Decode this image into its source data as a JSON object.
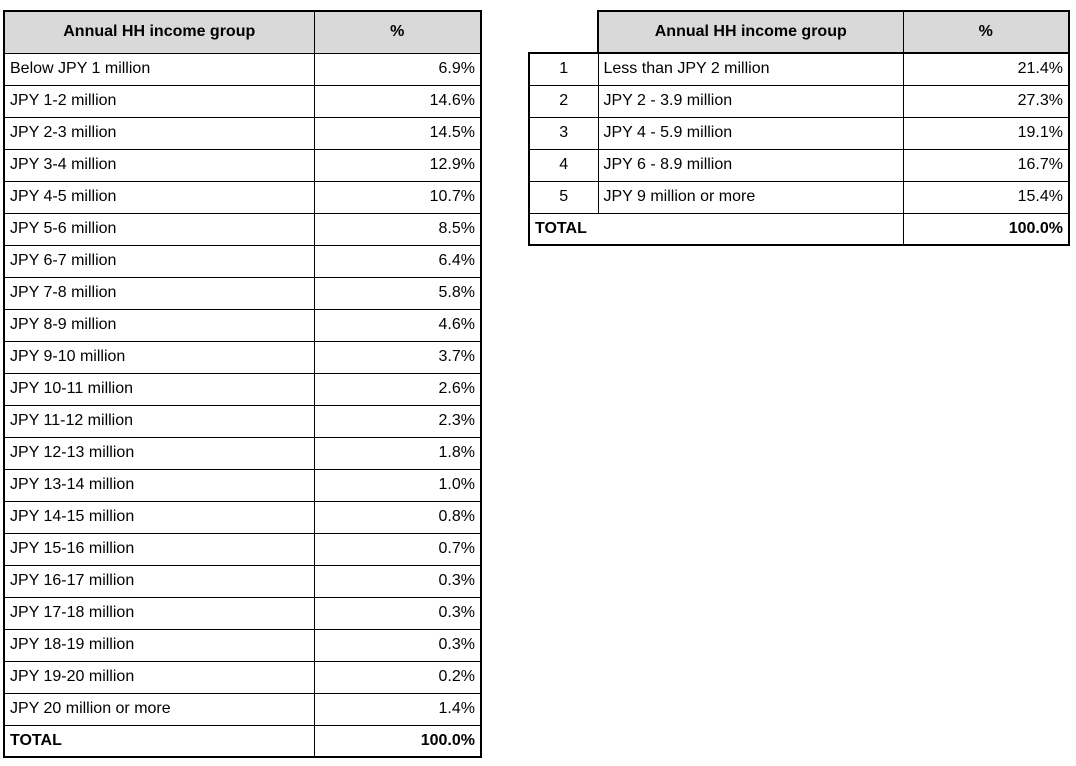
{
  "left_table": {
    "header": {
      "group": "Annual HH income group",
      "pct": "%"
    },
    "rows": [
      {
        "group": "Below JPY 1 million",
        "pct": "6.9%"
      },
      {
        "group": "JPY 1-2 million",
        "pct": "14.6%"
      },
      {
        "group": "JPY 2-3 million",
        "pct": "14.5%"
      },
      {
        "group": "JPY 3-4 million",
        "pct": "12.9%"
      },
      {
        "group": "JPY 4-5 million",
        "pct": "10.7%"
      },
      {
        "group": "JPY 5-6 million",
        "pct": "8.5%"
      },
      {
        "group": "JPY 6-7 million",
        "pct": "6.4%"
      },
      {
        "group": "JPY 7-8 million",
        "pct": "5.8%"
      },
      {
        "group": "JPY 8-9 million",
        "pct": "4.6%"
      },
      {
        "group": "JPY 9-10 million",
        "pct": "3.7%"
      },
      {
        "group": "JPY 10-11 million",
        "pct": "2.6%"
      },
      {
        "group": "JPY 11-12 million",
        "pct": "2.3%"
      },
      {
        "group": "JPY 12-13 million",
        "pct": "1.8%"
      },
      {
        "group": "JPY 13-14 million",
        "pct": "1.0%"
      },
      {
        "group": "JPY 14-15 million",
        "pct": "0.8%"
      },
      {
        "group": "JPY 15-16 million",
        "pct": "0.7%"
      },
      {
        "group": "JPY 16-17 million",
        "pct": "0.3%"
      },
      {
        "group": "JPY 17-18 million",
        "pct": "0.3%"
      },
      {
        "group": "JPY 18-19 million",
        "pct": "0.3%"
      },
      {
        "group": "JPY 19-20 million",
        "pct": "0.2%"
      },
      {
        "group": "JPY 20 million or more",
        "pct": "1.4%"
      }
    ],
    "total": {
      "label": "TOTAL",
      "pct": "100.0%"
    }
  },
  "right_table": {
    "header": {
      "group": "Annual HH income group",
      "pct": "%"
    },
    "rows": [
      {
        "num": "1",
        "group": "Less than JPY 2 million",
        "pct": "21.4%"
      },
      {
        "num": "2",
        "group": "JPY 2 - 3.9 million",
        "pct": "27.3%"
      },
      {
        "num": "3",
        "group": "JPY 4 - 5.9 million",
        "pct": "19.1%"
      },
      {
        "num": "4",
        "group": "JPY 6 - 8.9 million",
        "pct": "16.7%"
      },
      {
        "num": "5",
        "group": "JPY 9 million or more",
        "pct": "15.4%"
      }
    ],
    "total": {
      "label": "TOTAL",
      "pct": "100.0%"
    }
  },
  "colors": {
    "header_bg": "#d9d9d9",
    "border": "#000000",
    "text": "#000000",
    "page_bg": "#ffffff"
  },
  "chart_data": [
    {
      "type": "table",
      "columns": [
        "Annual HH income group",
        "%"
      ],
      "categories": [
        "Below JPY 1 million",
        "JPY 1-2 million",
        "JPY 2-3 million",
        "JPY 3-4 million",
        "JPY 4-5 million",
        "JPY 5-6 million",
        "JPY 6-7 million",
        "JPY 7-8 million",
        "JPY 8-9 million",
        "JPY 9-10 million",
        "JPY 10-11 million",
        "JPY 11-12 million",
        "JPY 12-13 million",
        "JPY 13-14 million",
        "JPY 14-15 million",
        "JPY 15-16 million",
        "JPY 16-17 million",
        "JPY 17-18 million",
        "JPY 18-19 million",
        "JPY 19-20 million",
        "JPY 20 million or more"
      ],
      "values": [
        6.9,
        14.6,
        14.5,
        12.9,
        10.7,
        8.5,
        6.4,
        5.8,
        4.6,
        3.7,
        2.6,
        2.3,
        1.8,
        1.0,
        0.8,
        0.7,
        0.3,
        0.3,
        0.3,
        0.2,
        1.4
      ],
      "total": 100.0
    },
    {
      "type": "table",
      "columns": [
        "",
        "Annual HH income group",
        "%"
      ],
      "row_numbers": [
        1,
        2,
        3,
        4,
        5
      ],
      "categories": [
        "Less than JPY 2 million",
        "JPY 2 - 3.9 million",
        "JPY 4 - 5.9 million",
        "JPY 6 - 8.9 million",
        "JPY 9 million or more"
      ],
      "values": [
        21.4,
        27.3,
        19.1,
        16.7,
        15.4
      ],
      "total": 100.0
    }
  ]
}
